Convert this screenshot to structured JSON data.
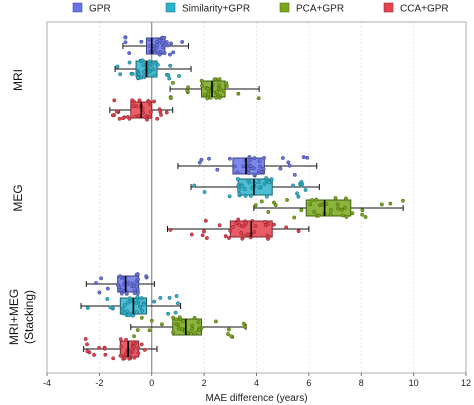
{
  "chart_data": {
    "type": "box",
    "xlabel": "MAE difference (years)",
    "xlim": [
      -4,
      12
    ],
    "xticks": [
      -4,
      -2,
      0,
      2,
      4,
      6,
      8,
      10,
      12
    ],
    "vline_at": 0,
    "grid": "vertical dotted",
    "legend": {
      "placement": "top",
      "entries": [
        {
          "label": "GPR",
          "color": "#6673e6"
        },
        {
          "label": "Similarity+GPR",
          "color": "#2db3cc"
        },
        {
          "label": "PCA+GPR",
          "color": "#78a81c"
        },
        {
          "label": "CCA+GPR",
          "color": "#e6414e"
        }
      ]
    },
    "groups": [
      {
        "label": "MRI",
        "boxes": [
          {
            "series": "GPR",
            "min": -1.1,
            "q1": -0.2,
            "median": 0.0,
            "q3": 0.5,
            "max": 1.4
          },
          {
            "series": "Similarity+GPR",
            "min": -1.4,
            "q1": -0.6,
            "median": -0.2,
            "q3": 0.2,
            "max": 1.5
          },
          {
            "series": "PCA+GPR",
            "min": 0.7,
            "q1": 1.9,
            "median": 2.3,
            "q3": 2.8,
            "max": 4.1
          },
          {
            "series": "CCA+GPR",
            "min": -1.6,
            "q1": -0.8,
            "median": -0.4,
            "q3": 0.0,
            "max": 0.8
          }
        ]
      },
      {
        "label": "MEG",
        "boxes": [
          {
            "series": "GPR",
            "min": 1.0,
            "q1": 3.1,
            "median": 3.6,
            "q3": 4.3,
            "max": 6.3
          },
          {
            "series": "Similarity+GPR",
            "min": 1.5,
            "q1": 3.3,
            "median": 3.9,
            "q3": 4.6,
            "max": 6.4
          },
          {
            "series": "PCA+GPR",
            "min": 3.9,
            "q1": 5.9,
            "median": 6.6,
            "q3": 7.6,
            "max": 9.6
          },
          {
            "series": "CCA+GPR",
            "min": 0.6,
            "q1": 3.0,
            "median": 3.8,
            "q3": 4.6,
            "max": 6.0
          }
        ]
      },
      {
        "label": "MRI+MEG",
        "sublabel": "(Stacking)",
        "boxes": [
          {
            "series": "GPR",
            "min": -2.5,
            "q1": -1.3,
            "median": -1.0,
            "q3": -0.5,
            "max": 0.1
          },
          {
            "series": "Similarity+GPR",
            "min": -2.7,
            "q1": -1.2,
            "median": -0.7,
            "q3": -0.2,
            "max": 1.1
          },
          {
            "series": "PCA+GPR",
            "min": -0.8,
            "q1": 0.8,
            "median": 1.3,
            "q3": 1.9,
            "max": 3.6
          },
          {
            "series": "CCA+GPR",
            "min": -2.6,
            "q1": -1.2,
            "median": -0.9,
            "q3": -0.5,
            "max": 0.2
          }
        ]
      }
    ]
  }
}
